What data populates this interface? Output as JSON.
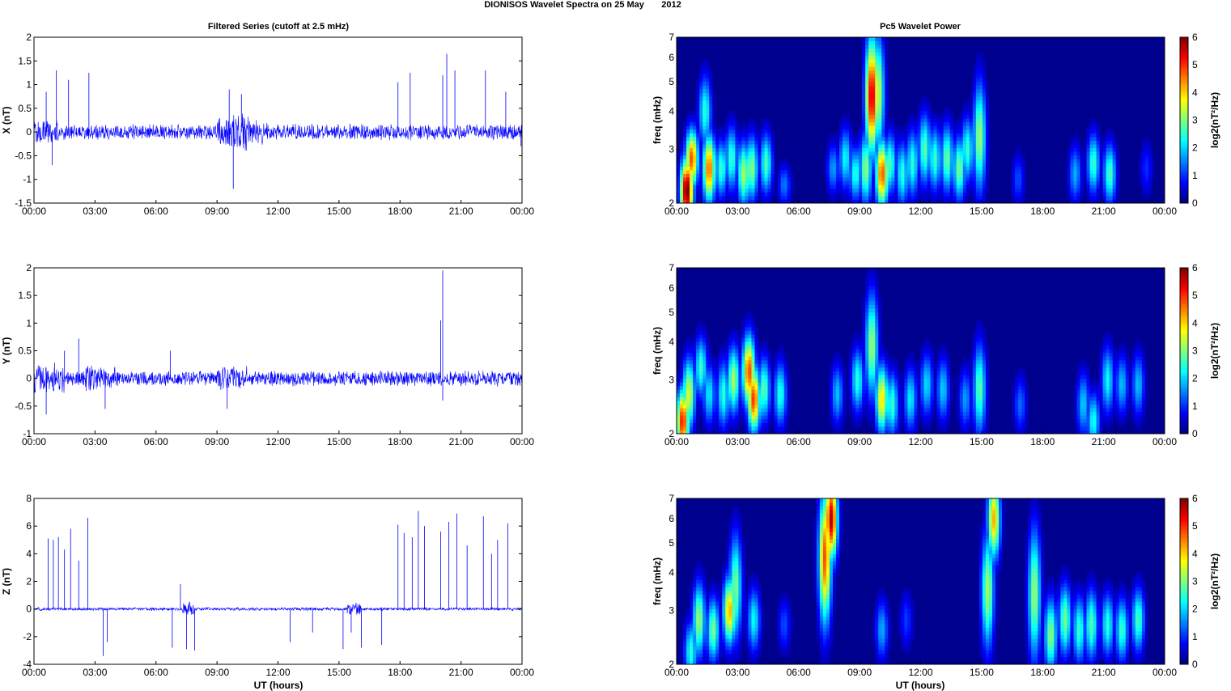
{
  "figure": {
    "title": "DIONISOS Wavelet Spectra on 25 May       2012",
    "left_column_title": "Filtered Series (cutoff at 2.5 mHz)",
    "right_column_title": "Pc5 Wavelet Power",
    "xlabel": "UT (hours)",
    "x_ticks": [
      "00:00",
      "03:00",
      "06:00",
      "09:00",
      "12:00",
      "15:00",
      "18:00",
      "21:00",
      "00:00"
    ],
    "series_color": "#0000ff",
    "spectrogram_background": "#00008f"
  },
  "chart_data": [
    {
      "type": "line",
      "ylabel": "X (nT)",
      "xlim_hours": [
        0,
        24
      ],
      "ylim": [
        -1.5,
        2
      ],
      "yticks": [
        -1.5,
        -1,
        -0.5,
        0,
        0.5,
        1,
        1.5,
        2
      ],
      "noise_amplitude": 0.18,
      "noise_windows": [
        [
          9.0,
          10.6,
          0.45
        ],
        [
          10.6,
          11.5,
          0.3
        ],
        [
          0,
          1.2,
          0.3
        ]
      ],
      "spikes": [
        [
          0.6,
          0.85
        ],
        [
          0.9,
          -0.7
        ],
        [
          1.1,
          1.3
        ],
        [
          1.7,
          1.1
        ],
        [
          2.7,
          1.25
        ],
        [
          9.6,
          0.9
        ],
        [
          9.8,
          -1.2
        ],
        [
          10.2,
          0.8
        ],
        [
          17.9,
          1.05
        ],
        [
          18.5,
          1.25
        ],
        [
          20.1,
          1.2
        ],
        [
          20.3,
          1.65
        ],
        [
          20.7,
          1.3
        ],
        [
          22.2,
          1.3
        ],
        [
          23.2,
          0.85
        ],
        [
          23.95,
          -0.3
        ]
      ]
    },
    {
      "type": "line",
      "ylabel": "Y (nT)",
      "xlim_hours": [
        0,
        24
      ],
      "ylim": [
        -1,
        2
      ],
      "yticks": [
        -1,
        -0.5,
        0,
        0.5,
        1,
        1.5,
        2
      ],
      "noise_amplitude": 0.15,
      "noise_windows": [
        [
          0,
          1.5,
          0.3
        ],
        [
          2.5,
          4.0,
          0.25
        ],
        [
          9.0,
          10.5,
          0.25
        ]
      ],
      "spikes": [
        [
          0.6,
          -0.65
        ],
        [
          1.5,
          0.5
        ],
        [
          2.2,
          0.72
        ],
        [
          3.5,
          -0.55
        ],
        [
          6.7,
          0.5
        ],
        [
          9.5,
          -0.55
        ],
        [
          20.1,
          1.95
        ],
        [
          20.0,
          1.05
        ],
        [
          20.1,
          -0.4
        ]
      ]
    },
    {
      "type": "line",
      "ylabel": "Z (nT)",
      "xlim_hours": [
        0,
        24
      ],
      "ylim": [
        -4,
        8
      ],
      "yticks": [
        -4,
        -2,
        0,
        2,
        4,
        6,
        8
      ],
      "noise_amplitude": 0.12,
      "noise_windows": [
        [
          7.3,
          7.9,
          0.6
        ],
        [
          15.4,
          16.1,
          0.5
        ]
      ],
      "spikes": [
        [
          0.7,
          5.1
        ],
        [
          0.95,
          5.0
        ],
        [
          1.2,
          5.2
        ],
        [
          1.5,
          4.3
        ],
        [
          1.8,
          5.8
        ],
        [
          2.2,
          3.5
        ],
        [
          2.65,
          6.6
        ],
        [
          3.4,
          -3.4
        ],
        [
          3.6,
          -2.4
        ],
        [
          6.8,
          -2.8
        ],
        [
          7.2,
          1.8
        ],
        [
          7.5,
          -2.9
        ],
        [
          7.9,
          -3.0
        ],
        [
          12.6,
          -2.4
        ],
        [
          13.7,
          -1.7
        ],
        [
          15.2,
          -2.9
        ],
        [
          15.6,
          -1.7
        ],
        [
          16.1,
          -2.8
        ],
        [
          17.1,
          -2.6
        ],
        [
          17.9,
          6.1
        ],
        [
          18.2,
          5.5
        ],
        [
          18.6,
          5.2
        ],
        [
          18.9,
          7.1
        ],
        [
          19.2,
          6.0
        ],
        [
          20.0,
          5.6
        ],
        [
          20.4,
          6.3
        ],
        [
          20.8,
          6.9
        ],
        [
          21.3,
          4.6
        ],
        [
          22.1,
          6.7
        ],
        [
          22.5,
          4.0
        ],
        [
          22.8,
          5.0
        ],
        [
          23.3,
          6.2
        ]
      ]
    },
    {
      "type": "heatmap",
      "ylabel": "freq (mHz)",
      "xlim_hours": [
        0,
        24
      ],
      "ylim": [
        2,
        7
      ],
      "yscale": "log",
      "yticks": [
        2,
        3,
        4,
        5,
        6,
        7
      ],
      "colorbar_label": "log2(nT²/Hz)",
      "colorbar_ticks": [
        0,
        1,
        2,
        3,
        4,
        5,
        6
      ],
      "blobs": [
        [
          0.5,
          2.2,
          1.0,
          6.2
        ],
        [
          0.75,
          2.8,
          0.8,
          4.8
        ],
        [
          1.6,
          2.6,
          1.1,
          4.7
        ],
        [
          1.4,
          4.0,
          1.2,
          2.5
        ],
        [
          2.2,
          2.6,
          0.8,
          2.6
        ],
        [
          2.7,
          2.8,
          1.0,
          2.6
        ],
        [
          3.3,
          2.5,
          1.0,
          3.3
        ],
        [
          3.7,
          2.6,
          1.0,
          3.1
        ],
        [
          4.4,
          2.7,
          0.9,
          2.7
        ],
        [
          5.3,
          2.3,
          0.3,
          1.5
        ],
        [
          7.7,
          2.6,
          0.6,
          1.7
        ],
        [
          8.3,
          2.8,
          0.9,
          2.3
        ],
        [
          8.8,
          2.5,
          0.7,
          2.5
        ],
        [
          9.3,
          2.6,
          1.2,
          3.1
        ],
        [
          9.6,
          4.5,
          2.5,
          5.6
        ],
        [
          10.1,
          2.5,
          1.1,
          4.8
        ],
        [
          9.9,
          4.6,
          2.5,
          3.6
        ],
        [
          10.5,
          2.7,
          0.9,
          2.7
        ],
        [
          11.1,
          2.5,
          1.0,
          2.5
        ],
        [
          11.6,
          2.7,
          1.1,
          2.5
        ],
        [
          12.2,
          3.0,
          1.2,
          2.8
        ],
        [
          12.7,
          2.8,
          1.0,
          2.6
        ],
        [
          13.3,
          2.8,
          1.1,
          2.9
        ],
        [
          13.9,
          2.6,
          1.0,
          3.0
        ],
        [
          14.3,
          3.0,
          1.0,
          2.6
        ],
        [
          14.9,
          3.3,
          2.3,
          3.2
        ],
        [
          16.8,
          2.4,
          0.6,
          1.2
        ],
        [
          19.6,
          2.5,
          0.8,
          1.8
        ],
        [
          20.5,
          2.7,
          0.9,
          2.6
        ],
        [
          21.3,
          2.5,
          0.9,
          2.7
        ],
        [
          23.1,
          2.6,
          0.7,
          1.0
        ]
      ]
    },
    {
      "type": "heatmap",
      "ylabel": "freq (mHz)",
      "xlim_hours": [
        0,
        24
      ],
      "ylim": [
        2,
        7
      ],
      "yscale": "log",
      "yticks": [
        2,
        3,
        4,
        5,
        6,
        7
      ],
      "colorbar_label": "log2(nT²/Hz)",
      "colorbar_ticks": [
        0,
        1,
        2,
        3,
        4,
        5,
        6
      ],
      "blobs": [
        [
          0.3,
          2.2,
          1.0,
          5.2
        ],
        [
          0.6,
          2.7,
          1.2,
          3.6
        ],
        [
          1.2,
          3.3,
          0.9,
          2.6
        ],
        [
          1.6,
          2.7,
          0.9,
          2.2
        ],
        [
          2.3,
          2.7,
          1.1,
          2.5
        ],
        [
          2.8,
          3.0,
          1.1,
          3.3
        ],
        [
          3.55,
          3.2,
          1.2,
          4.9
        ],
        [
          3.8,
          2.6,
          1.0,
          5.0
        ],
        [
          4.3,
          2.8,
          1.0,
          2.8
        ],
        [
          5.1,
          2.7,
          1.0,
          2.5
        ],
        [
          7.9,
          2.7,
          0.9,
          1.9
        ],
        [
          8.9,
          3.0,
          1.0,
          2.5
        ],
        [
          9.6,
          3.9,
          2.2,
          3.2
        ],
        [
          10.1,
          2.6,
          1.1,
          4.0
        ],
        [
          10.6,
          2.5,
          1.0,
          2.6
        ],
        [
          11.5,
          2.6,
          1.0,
          2.2
        ],
        [
          12.3,
          2.9,
          1.0,
          2.1
        ],
        [
          13.1,
          2.8,
          1.0,
          2.0
        ],
        [
          14.2,
          2.6,
          0.9,
          1.7
        ],
        [
          14.9,
          2.8,
          1.8,
          2.8
        ],
        [
          16.9,
          2.5,
          0.8,
          1.4
        ],
        [
          20.0,
          2.5,
          1.0,
          2.0
        ],
        [
          20.5,
          2.2,
          0.8,
          2.4
        ],
        [
          21.2,
          3.0,
          1.1,
          2.3
        ],
        [
          21.9,
          2.9,
          0.9,
          1.9
        ],
        [
          22.7,
          2.9,
          1.0,
          1.9
        ]
      ]
    },
    {
      "type": "heatmap",
      "ylabel": "freq (mHz)",
      "xlim_hours": [
        0,
        24
      ],
      "ylim": [
        2,
        7
      ],
      "yscale": "log",
      "yticks": [
        2,
        3,
        4,
        5,
        6,
        7
      ],
      "colorbar_label": "log2(nT²/Hz)",
      "colorbar_ticks": [
        0,
        1,
        2,
        3,
        4,
        5,
        6
      ],
      "blobs": [
        [
          0.7,
          2.2,
          0.9,
          2.5
        ],
        [
          1.1,
          2.8,
          1.3,
          3.2
        ],
        [
          1.8,
          2.6,
          1.0,
          3.0
        ],
        [
          2.6,
          3.0,
          1.1,
          4.2
        ],
        [
          2.9,
          3.6,
          2.2,
          3.0
        ],
        [
          3.8,
          2.8,
          1.0,
          2.3
        ],
        [
          5.3,
          2.7,
          0.7,
          1.2
        ],
        [
          7.3,
          4.5,
          3.0,
          4.8
        ],
        [
          7.6,
          6.0,
          1.5,
          5.7
        ],
        [
          10.1,
          2.6,
          0.9,
          1.8
        ],
        [
          11.3,
          2.8,
          0.8,
          1.1
        ],
        [
          15.3,
          3.5,
          2.5,
          3.3
        ],
        [
          15.6,
          6.0,
          1.5,
          4.2
        ],
        [
          17.6,
          3.4,
          3.0,
          3.2
        ],
        [
          18.4,
          2.5,
          1.3,
          3.1
        ],
        [
          19.1,
          2.8,
          1.2,
          3.0
        ],
        [
          19.8,
          2.6,
          1.1,
          2.6
        ],
        [
          20.4,
          2.7,
          1.2,
          2.8
        ],
        [
          21.2,
          2.7,
          1.0,
          2.5
        ],
        [
          21.9,
          2.6,
          1.0,
          2.6
        ],
        [
          22.7,
          2.8,
          1.0,
          2.7
        ]
      ]
    }
  ]
}
